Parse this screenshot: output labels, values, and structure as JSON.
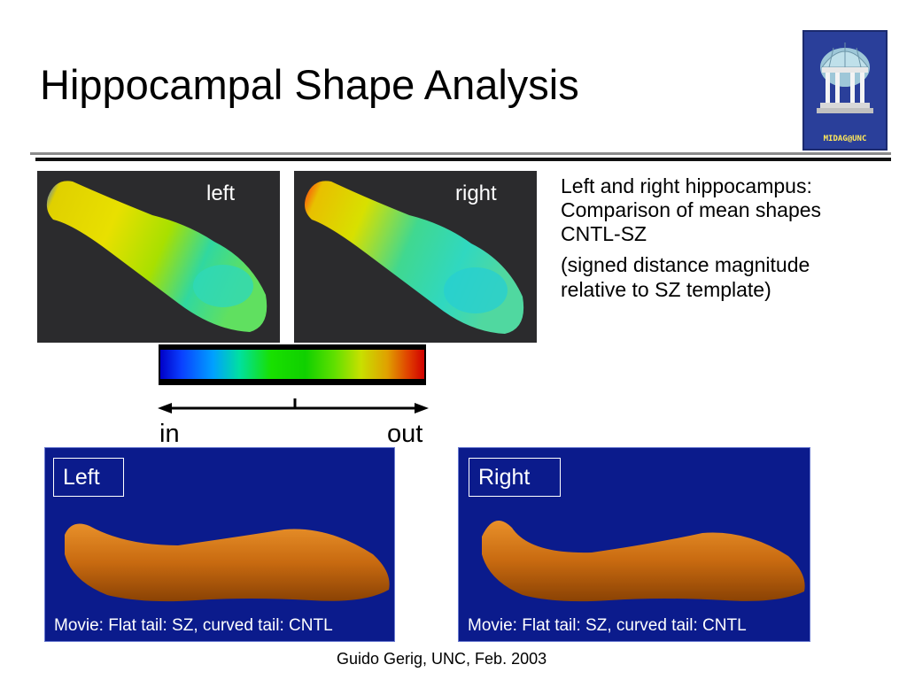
{
  "slide": {
    "title": "Hippocampal Shape Analysis",
    "logo_text": "MIDAG@UNC",
    "panels": {
      "left_label": "left",
      "right_label": "right"
    },
    "description": {
      "line1": "Left and right hippocampus: Comparison of mean shapes CNTL-SZ",
      "line2": "(signed distance magnitude relative to SZ template)"
    },
    "scale": {
      "in_label": "in",
      "out_label": "out"
    },
    "bottom": {
      "left_tag": "Left",
      "right_tag": "Right",
      "left_caption": "Movie: Flat tail: SZ, curved tail: CNTL",
      "right_caption": "Movie: Flat tail: SZ, curved tail: CNTL"
    },
    "footer": "Guido Gerig, UNC, Feb. 2003"
  }
}
